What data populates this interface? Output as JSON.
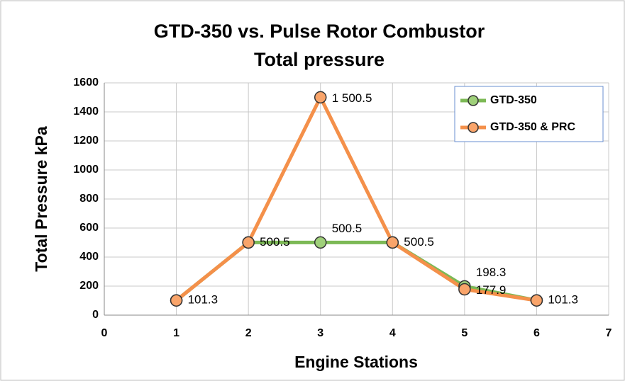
{
  "chart_data": {
    "type": "line",
    "title": "GTD-350 vs. Pulse Rotor Combustor",
    "subtitle": "Total pressure",
    "x_label": "Engine Stations",
    "y_label": "Total Pressure kPa",
    "x": [
      1,
      2,
      3,
      4,
      5,
      6
    ],
    "series": [
      {
        "name": "GTD-350",
        "color": "#7cb955",
        "marker_color": "#9fd07a",
        "values": [
          101.3,
          500.5,
          500.5,
          500.5,
          198.3,
          101.3
        ],
        "value_labels": [
          null,
          null,
          "500.5",
          null,
          "198.3",
          null
        ]
      },
      {
        "name": "GTD-350 & PRC",
        "color": "#f4904a",
        "marker_color": "#f9a46a",
        "values": [
          101.3,
          500.5,
          1500.5,
          500.5,
          177.9,
          101.3
        ],
        "value_labels": [
          "101.3",
          "500.5",
          "1 500.5",
          "500.5",
          "177.9",
          "101.3"
        ]
      }
    ],
    "xlim": [
      0,
      7
    ],
    "xticks": [
      0,
      1,
      2,
      3,
      4,
      5,
      6,
      7
    ],
    "ylim": [
      0,
      1600
    ],
    "yticks": [
      0,
      200,
      400,
      600,
      800,
      1000,
      1200,
      1400,
      1600
    ],
    "grid": true,
    "legend": "top-right"
  }
}
